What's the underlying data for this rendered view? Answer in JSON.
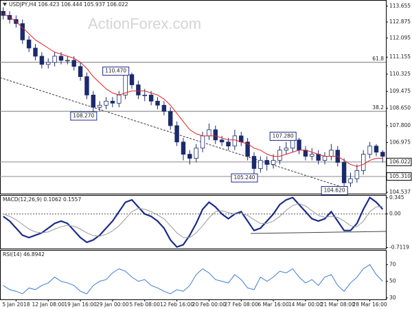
{
  "chart_data": [
    {
      "type": "candlestick",
      "title": "USDJPY,H4  106.423 106.444 105.937 106.022",
      "watermark": "ActionForex.com",
      "color": "#1a2a6c",
      "open": [
        113.4,
        113.2,
        113.0,
        112.8,
        112.0,
        111.6,
        111.2,
        110.8,
        110.9,
        111.2,
        111.0,
        111.0,
        110.7,
        110.2,
        109.3,
        108.7,
        108.8,
        109.0,
        108.9,
        109.3,
        110.3,
        109.8,
        109.3,
        109.3,
        109.0,
        108.8,
        108.5,
        107.8,
        107.0,
        106.4,
        106.2,
        106.7,
        107.3,
        107.6,
        107.1,
        107.0,
        106.8,
        107.3,
        107.0,
        106.3,
        105.7,
        106.1,
        105.9,
        106.1,
        106.6,
        106.7,
        107.1,
        106.6,
        106.3,
        106.4,
        106.1,
        106.3,
        106.6,
        106.0,
        105.0,
        105.2,
        105.6,
        106.4,
        106.8,
        106.5
      ],
      "high": [
        113.6,
        113.4,
        113.2,
        113.0,
        112.2,
        111.8,
        111.4,
        111.1,
        111.4,
        111.4,
        111.2,
        111.2,
        110.9,
        110.4,
        109.5,
        109.0,
        109.2,
        109.2,
        109.5,
        110.47,
        110.4,
        110.0,
        109.6,
        109.5,
        109.2,
        109.0,
        108.7,
        108.0,
        107.2,
        106.6,
        106.9,
        107.5,
        107.9,
        107.8,
        107.3,
        107.2,
        107.6,
        107.5,
        107.2,
        106.5,
        106.3,
        106.3,
        106.4,
        106.8,
        107.0,
        107.28,
        107.2,
        106.8,
        106.7,
        106.6,
        106.5,
        106.9,
        106.8,
        106.2,
        105.5,
        105.9,
        106.6,
        107.0,
        106.9,
        106.6
      ],
      "low": [
        113.0,
        112.8,
        112.6,
        111.8,
        111.4,
        111.0,
        110.6,
        110.6,
        110.7,
        110.8,
        110.8,
        110.5,
        110.0,
        109.1,
        108.27,
        108.5,
        108.6,
        108.7,
        108.7,
        109.1,
        109.6,
        109.1,
        109.0,
        108.8,
        108.6,
        108.3,
        107.6,
        106.8,
        106.1,
        105.9,
        106.0,
        106.5,
        107.1,
        106.9,
        106.8,
        106.6,
        106.6,
        106.8,
        106.1,
        105.24,
        105.5,
        105.6,
        105.7,
        105.9,
        106.4,
        106.5,
        106.4,
        106.1,
        106.1,
        105.9,
        105.9,
        106.1,
        105.8,
        104.62,
        104.8,
        105.0,
        105.4,
        106.2,
        106.3,
        106.0
      ],
      "close": [
        113.2,
        113.0,
        112.8,
        112.0,
        111.6,
        111.2,
        110.8,
        110.9,
        111.2,
        111.0,
        111.0,
        110.7,
        110.2,
        109.3,
        108.7,
        108.8,
        109.0,
        108.9,
        109.3,
        110.3,
        109.8,
        109.3,
        109.3,
        109.0,
        108.8,
        108.5,
        107.8,
        107.0,
        106.4,
        106.2,
        106.7,
        107.3,
        107.6,
        107.1,
        107.0,
        106.8,
        107.3,
        107.0,
        106.3,
        105.7,
        106.1,
        105.9,
        106.1,
        106.6,
        106.7,
        107.1,
        106.6,
        106.3,
        106.4,
        106.1,
        106.3,
        106.6,
        106.0,
        105.0,
        105.2,
        105.6,
        106.4,
        106.8,
        106.5,
        106.3
      ],
      "overlay_color": "#e02020",
      "overlay_values": [
        113.3,
        113.1,
        112.9,
        112.6,
        112.3,
        112.0,
        111.8,
        111.6,
        111.4,
        111.3,
        111.2,
        111.1,
        110.9,
        110.6,
        110.2,
        109.9,
        109.6,
        109.4,
        109.3,
        109.4,
        109.5,
        109.5,
        109.5,
        109.4,
        109.3,
        109.1,
        108.8,
        108.4,
        108.0,
        107.6,
        107.4,
        107.3,
        107.3,
        107.3,
        107.2,
        107.1,
        107.1,
        107.0,
        106.9,
        106.7,
        106.6,
        106.4,
        106.3,
        106.3,
        106.4,
        106.5,
        106.6,
        106.6,
        106.5,
        106.4,
        106.3,
        106.3,
        106.3,
        106.1,
        105.9,
        105.8,
        105.9,
        106.1,
        106.2,
        106.2
      ],
      "ylim": [
        104.47,
        113.92
      ],
      "yticks": [
        113.655,
        112.875,
        112.095,
        111.155,
        110.325,
        109.475,
        {
          "value": 108.65,
          "label": "108.650"
        },
        {
          "value": 107.8,
          "label": "107.800"
        },
        106.975,
        104.537
      ],
      "levels": [
        {
          "label": "61.8",
          "value": 110.9
        },
        {
          "label": "38.2",
          "value": 108.5
        }
      ],
      "price_marks": [
        {
          "value": 106.022,
          "label": "106.022"
        },
        {
          "value": 105.31,
          "label": "105.310"
        }
      ],
      "annotations": [
        {
          "x": 19,
          "value": 110.47,
          "label": "110.470"
        },
        {
          "x": 14,
          "value": 108.27,
          "label": "108.270"
        },
        {
          "x": 45,
          "value": 107.28,
          "label": "107.280"
        },
        {
          "x": 39,
          "value": 105.24,
          "label": "105.240"
        },
        {
          "x": 53,
          "value": 104.62,
          "label": "104.620"
        }
      ]
    },
    {
      "type": "line",
      "title": "MACD(12,26,9) 0.1062 0.1557",
      "series": [
        {
          "color": "#1a2a8c",
          "width": 2.2,
          "values": [
            -0.05,
            -0.15,
            -0.3,
            -0.45,
            -0.5,
            -0.45,
            -0.4,
            -0.3,
            -0.2,
            -0.15,
            -0.2,
            -0.35,
            -0.5,
            -0.6,
            -0.55,
            -0.45,
            -0.3,
            -0.15,
            0.05,
            0.25,
            0.3,
            0.15,
            0.0,
            -0.05,
            -0.15,
            -0.3,
            -0.55,
            -0.7,
            -0.65,
            -0.45,
            -0.2,
            0.1,
            0.25,
            0.15,
            0.0,
            -0.1,
            0.0,
            0.05,
            -0.15,
            -0.35,
            -0.3,
            -0.15,
            0.0,
            0.2,
            0.3,
            0.35,
            0.2,
            0.05,
            -0.1,
            -0.15,
            -0.1,
            0.05,
            -0.15,
            -0.35,
            -0.35,
            -0.2,
            0.1,
            0.35,
            0.25,
            0.1
          ]
        },
        {
          "color": "#999999",
          "width": 1,
          "values": [
            0.0,
            -0.05,
            -0.12,
            -0.22,
            -0.32,
            -0.38,
            -0.4,
            -0.38,
            -0.32,
            -0.27,
            -0.24,
            -0.26,
            -0.32,
            -0.4,
            -0.46,
            -0.47,
            -0.43,
            -0.36,
            -0.25,
            -0.1,
            0.05,
            0.12,
            0.1,
            0.05,
            -0.02,
            -0.1,
            -0.25,
            -0.4,
            -0.5,
            -0.5,
            -0.4,
            -0.25,
            -0.08,
            0.05,
            0.07,
            0.03,
            0.0,
            0.02,
            -0.03,
            -0.12,
            -0.2,
            -0.2,
            -0.15,
            -0.05,
            0.08,
            0.18,
            0.22,
            0.17,
            0.07,
            -0.03,
            -0.07,
            -0.05,
            -0.07,
            -0.15,
            -0.25,
            -0.27,
            -0.15,
            0.05,
            0.15,
            0.16
          ]
        }
      ],
      "ylim": [
        -0.733,
        0.388
      ],
      "yticks": [
        0.345,
        {
          "value": 0,
          "label": "0.00"
        },
        -0.7119
      ],
      "zero_line": 0
    },
    {
      "type": "line",
      "title": "RSI(14) 46.8942",
      "series": [
        {
          "color": "#3a7bd5",
          "width": 1,
          "values": [
            45,
            40,
            38,
            35,
            42,
            40,
            45,
            48,
            55,
            50,
            48,
            45,
            38,
            35,
            45,
            50,
            52,
            60,
            65,
            62,
            55,
            50,
            52,
            45,
            42,
            38,
            35,
            40,
            38,
            45,
            58,
            65,
            60,
            52,
            50,
            48,
            58,
            52,
            42,
            40,
            55,
            50,
            55,
            62,
            60,
            65,
            55,
            48,
            52,
            45,
            55,
            58,
            45,
            38,
            48,
            55,
            65,
            70,
            58,
            50
          ]
        }
      ],
      "ylim": [
        28.3,
        86.7
      ],
      "yticks": [
        70,
        50,
        30
      ],
      "xticks": [
        {
          "value": 2,
          "label": "5 Jan 2018"
        },
        {
          "value": 7,
          "label": "12 Jan 08:00"
        },
        {
          "value": 12,
          "label": "19 Jan 16:00"
        },
        {
          "value": 17,
          "label": "29 Jan 00:00"
        },
        {
          "value": 22,
          "label": "5 Feb 08:00"
        },
        {
          "value": 27,
          "label": "12 Feb 16:00"
        },
        {
          "value": 32,
          "label": "20 Feb 00:00"
        },
        {
          "value": 37,
          "label": "27 Feb 08:00"
        },
        {
          "value": 42,
          "label": "6 Mar 16:00"
        },
        {
          "value": 47,
          "label": "14 Mar 00:00"
        },
        {
          "value": 52,
          "label": "21 Mar 08:00"
        },
        {
          "value": 57,
          "label": "28 Mar 16:00"
        }
      ]
    }
  ]
}
